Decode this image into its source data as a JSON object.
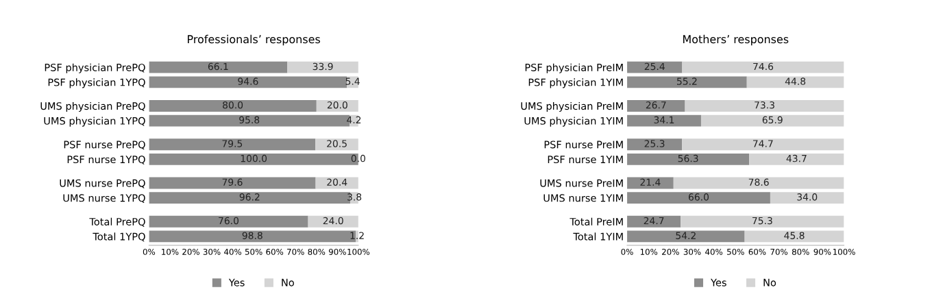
{
  "chart_data": [
    {
      "type": "bar",
      "orientation": "horizontal",
      "stacked": true,
      "title": "Professionals’ responses",
      "categories": [
        "PSF physician PrePQ",
        "PSF physician 1YPQ",
        "UMS physician PrePQ",
        "UMS physician 1YPQ",
        "PSF nurse PrePQ",
        "PSF nurse 1YPQ",
        "UMS nurse PrePQ",
        "UMS nurse 1YPQ",
        "Total PrePQ",
        "Total 1YPQ"
      ],
      "series": [
        {
          "name": "Yes",
          "color": "#8c8c8c",
          "values": [
            66.1,
            94.6,
            80.0,
            95.8,
            79.5,
            100.0,
            79.6,
            96.2,
            76.0,
            98.8
          ],
          "value_labels": [
            "66.1",
            "94.6",
            "80.0",
            "95.8",
            "79.5",
            "100.0",
            "79.6",
            "96.2",
            "76.0",
            "98.8"
          ]
        },
        {
          "name": "No",
          "color": "#d4d4d4",
          "values": [
            33.9,
            5.4,
            20.0,
            4.2,
            20.5,
            0.0,
            20.4,
            3.8,
            24.0,
            1.2
          ],
          "value_labels": [
            "33.9",
            "5.4",
            "20.0",
            "4.2",
            "20.5",
            "0.0",
            "20.4",
            "3.8",
            "24.0",
            "1.2"
          ]
        }
      ],
      "xlim": [
        0,
        100
      ],
      "xticks": [
        {
          "value": 0,
          "label": "0%"
        },
        {
          "value": 10,
          "label": "10%"
        },
        {
          "value": 20,
          "label": "20%"
        },
        {
          "value": 30,
          "label": "30%"
        },
        {
          "value": 40,
          "label": "40%"
        },
        {
          "value": 50,
          "label": "50%"
        },
        {
          "value": 60,
          "label": "60%"
        },
        {
          "value": 70,
          "label": "70%"
        },
        {
          "value": 80,
          "label": "80%"
        },
        {
          "value": 90,
          "label": "90%"
        },
        {
          "value": 100,
          "label": "100%"
        }
      ],
      "legend": "bottom",
      "grid": false
    },
    {
      "type": "bar",
      "orientation": "horizontal",
      "stacked": true,
      "title": "Mothers’ responses",
      "categories": [
        "PSF physician PreIM",
        "PSF physician 1YIM",
        "UMS physician PreIM",
        "UMS physician 1YIM",
        "PSF nurse PreIM",
        "PSF nurse 1YIM",
        "UMS nurse PreIM",
        "UMS nurse 1YIM",
        "Total PreIM",
        "Total 1YIM"
      ],
      "series": [
        {
          "name": "Yes",
          "color": "#8c8c8c",
          "values": [
            25.4,
            55.2,
            26.7,
            34.1,
            25.3,
            56.3,
            21.4,
            66.0,
            24.7,
            54.2
          ],
          "value_labels": [
            "25.4",
            "55.2",
            "26.7",
            "34.1",
            "25.3",
            "56.3",
            "21.4",
            "66.0",
            "24.7",
            "54.2"
          ]
        },
        {
          "name": "No",
          "color": "#d4d4d4",
          "values": [
            74.6,
            44.8,
            73.3,
            65.9,
            74.7,
            43.7,
            78.6,
            34.0,
            75.3,
            45.8
          ],
          "value_labels": [
            "74.6",
            "44.8",
            "73.3",
            "65.9",
            "74.7",
            "43.7",
            "78.6",
            "34.0",
            "75.3",
            "45.8"
          ]
        }
      ],
      "xlim": [
        0,
        100
      ],
      "xticks": [
        {
          "value": 0,
          "label": "0%"
        },
        {
          "value": 10,
          "label": "10%"
        },
        {
          "value": 20,
          "label": "20%"
        },
        {
          "value": 30,
          "label": "30%"
        },
        {
          "value": 40,
          "label": "40%"
        },
        {
          "value": 50,
          "label": "50%"
        },
        {
          "value": 60,
          "label": "60%"
        },
        {
          "value": 70,
          "label": "70%"
        },
        {
          "value": 80,
          "label": "80%"
        },
        {
          "value": 90,
          "label": "90%"
        },
        {
          "value": 100,
          "label": "100%"
        }
      ],
      "legend": "bottom",
      "grid": false
    }
  ]
}
